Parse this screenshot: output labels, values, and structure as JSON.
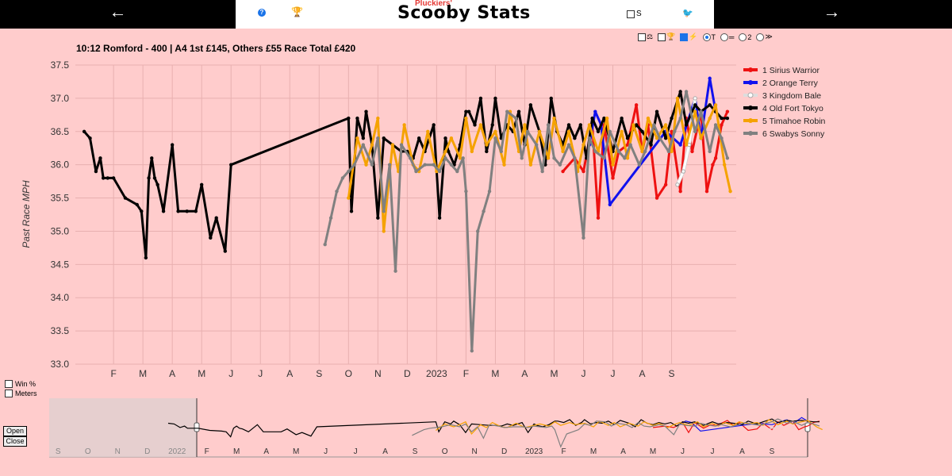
{
  "header": {
    "back_arrow": "←",
    "forward_arrow": "→",
    "brand_small": "Pluckiers'",
    "brand": "Scooby Stats",
    "s_label": "S",
    "help_icon": "help-icon",
    "trophy_icon": "trophy-icon",
    "bird_icon": "bird-icon"
  },
  "race": {
    "title": "10:12 Romford - 400 | A4 1st £145, Others £55 Race Total £420"
  },
  "options": {
    "t_label": "T",
    "two_label": "2",
    "chevron": "≫"
  },
  "side": {
    "win_pct": "Win %",
    "meters": "Meters",
    "open": "Open",
    "close": "Close"
  },
  "chart_data": {
    "type": "line",
    "title": "10:12 Romford - 400 | A4 1st £145, Others £55 Race Total £420",
    "ylabel": "Past Race MPH",
    "xlabel": "",
    "ylim": [
      33.0,
      37.5
    ],
    "yticks": [
      "33.0",
      "33.5",
      "34.0",
      "34.5",
      "35.0",
      "35.5",
      "36.0",
      "36.5",
      "37.0",
      "37.5"
    ],
    "x_tick_labels": [
      "F",
      "M",
      "A",
      "M",
      "J",
      "J",
      "A",
      "S",
      "O",
      "N",
      "D",
      "2023",
      "F",
      "M",
      "A",
      "M",
      "J",
      "J",
      "A",
      "S"
    ],
    "x_unit": "months since 2022-01-01",
    "series": [
      {
        "name": "1 Sirius Warrior",
        "color": "#ee1111",
        "x": [
          16.3,
          16.7,
          17.0,
          17.3,
          17.5,
          17.7,
          18.0,
          18.2,
          18.5,
          18.8,
          19.0,
          19.2,
          19.5,
          19.8,
          20.0,
          20.3,
          20.5,
          20.7,
          21.0,
          21.2,
          21.4,
          21.5,
          21.7,
          21.9
        ],
        "y": [
          35.9,
          36.1,
          35.9,
          36.6,
          35.2,
          36.6,
          35.8,
          36.2,
          36.3,
          36.9,
          36.2,
          36.6,
          35.5,
          35.7,
          36.5,
          35.6,
          36.7,
          36.2,
          36.8,
          35.6,
          36.0,
          36.1,
          36.6,
          36.8
        ]
      },
      {
        "name": "2 Orange Terry",
        "color": "#1111ee",
        "x": [
          17.2,
          17.4,
          17.6,
          17.9,
          19.8,
          20.3,
          20.8,
          21.0,
          21.3,
          21.5
        ],
        "y": [
          36.3,
          36.8,
          36.6,
          35.4,
          36.5,
          36.3,
          37.0,
          36.4,
          37.3,
          36.8
        ]
      },
      {
        "name": "3 Kingdom Bale",
        "color": "#ffffff",
        "x": [
          20.2,
          20.4,
          20.6,
          20.8
        ],
        "y": [
          35.7,
          35.9,
          36.3,
          37.0
        ]
      },
      {
        "name": "4 Old Fort Tokyo",
        "color": "#000000",
        "x": [
          0,
          0.2,
          0.4,
          0.55,
          0.65,
          0.8,
          1.0,
          1.4,
          1.8,
          1.95,
          2.1,
          2.2,
          2.3,
          2.4,
          2.5,
          2.7,
          3.0,
          3.2,
          3.5,
          3.8,
          4.0,
          4.3,
          4.5,
          4.8,
          5.0,
          9.0,
          9.1,
          9.3,
          9.5,
          9.6,
          9.8,
          10.0,
          10.2,
          10.5,
          10.8,
          11.0,
          11.2,
          11.4,
          11.6,
          11.9,
          12.1,
          12.3,
          12.4,
          12.6,
          12.8,
          13.0,
          13.1,
          13.3,
          13.5,
          13.7,
          13.9,
          14.0,
          14.2,
          14.4,
          14.6,
          14.8,
          15.0,
          15.2,
          15.5,
          15.7,
          15.9,
          16.1,
          16.3,
          16.5,
          16.7,
          16.9,
          17.1,
          17.3,
          17.5,
          17.7,
          18.0,
          18.3,
          18.5,
          18.8,
          19.0,
          19.3,
          19.5,
          19.8,
          20.0,
          20.3,
          20.5,
          20.8,
          21.0,
          21.3,
          21.5,
          21.7,
          21.9
        ],
        "y": [
          36.5,
          36.4,
          35.9,
          36.1,
          35.8,
          35.8,
          35.8,
          35.5,
          35.4,
          35.3,
          34.6,
          35.8,
          36.1,
          35.8,
          35.7,
          35.3,
          36.3,
          35.3,
          35.3,
          35.3,
          35.7,
          34.9,
          35.2,
          34.7,
          36.0,
          36.7,
          35.3,
          36.7,
          36.4,
          36.8,
          36.3,
          35.2,
          36.4,
          36.3,
          36.2,
          36.2,
          36.1,
          36.4,
          36.2,
          36.6,
          35.2,
          36.4,
          36.2,
          36.0,
          36.3,
          36.8,
          36.8,
          36.6,
          37.0,
          36.2,
          36.6,
          37.0,
          36.4,
          36.6,
          36.5,
          36.8,
          36.3,
          36.9,
          36.5,
          36.0,
          37.0,
          36.5,
          36.3,
          36.6,
          36.4,
          36.6,
          36.1,
          36.7,
          36.5,
          36.7,
          36.2,
          36.7,
          36.4,
          36.6,
          36.5,
          36.3,
          36.8,
          36.4,
          36.7,
          37.1,
          36.6,
          36.9,
          36.8,
          36.9,
          36.8,
          36.7,
          36.7
        ]
      },
      {
        "name": "5 Timahoe Robin",
        "color": "#f5a200",
        "x": [
          9.0,
          9.3,
          9.6,
          9.8,
          10.0,
          10.2,
          10.5,
          10.7,
          10.9,
          11.2,
          11.4,
          11.7,
          12.0,
          12.3,
          12.5,
          12.8,
          13.0,
          13.2,
          13.5,
          13.7,
          14.0,
          14.3,
          14.5,
          14.8,
          15.0,
          15.2,
          15.5,
          15.8,
          16.0,
          16.3,
          16.5,
          16.8,
          17.0,
          17.2,
          17.5,
          17.8,
          18.0,
          18.3,
          18.5,
          18.7,
          19.0,
          19.2,
          19.5,
          19.8,
          20.0,
          20.2,
          20.5,
          20.8,
          21.0,
          21.3,
          21.5,
          21.8,
          22.0
        ],
        "y": [
          35.5,
          36.4,
          36.0,
          36.3,
          36.7,
          35.0,
          36.3,
          35.9,
          36.6,
          36.0,
          35.9,
          36.5,
          35.9,
          36.2,
          36.4,
          36.1,
          36.7,
          36.2,
          36.6,
          36.3,
          36.5,
          36.0,
          36.8,
          36.2,
          36.6,
          36.0,
          36.5,
          36.1,
          36.7,
          36.2,
          36.5,
          35.9,
          36.3,
          36.6,
          36.2,
          36.7,
          36.0,
          36.5,
          36.1,
          36.6,
          36.2,
          36.7,
          36.4,
          36.6,
          36.2,
          37.0,
          36.3,
          36.8,
          36.4,
          36.7,
          36.9,
          36.0,
          35.6
        ]
      },
      {
        "name": "6 Swabys Sonny",
        "color": "#808080",
        "x": [
          8.2,
          8.4,
          8.6,
          8.8,
          9.0,
          9.2,
          9.5,
          9.8,
          10.0,
          10.2,
          10.4,
          10.6,
          10.8,
          11.1,
          11.3,
          11.6,
          11.9,
          12.1,
          12.3,
          12.5,
          12.7,
          12.9,
          13.0,
          13.2,
          13.4,
          13.6,
          13.8,
          14.0,
          14.2,
          14.4,
          14.7,
          14.9,
          15.1,
          15.4,
          15.6,
          15.8,
          16.0,
          16.2,
          16.5,
          16.7,
          17.0,
          17.2,
          17.4,
          17.7,
          17.9,
          18.2,
          18.4,
          18.6,
          18.9,
          19.1,
          19.4,
          19.6,
          19.9,
          20.1,
          20.3,
          20.5,
          20.8,
          21.0,
          21.3,
          21.5,
          21.7,
          21.9
        ],
        "y": [
          34.8,
          35.2,
          35.6,
          35.8,
          35.9,
          36.0,
          36.3,
          36.0,
          36.4,
          35.3,
          36.0,
          34.4,
          36.3,
          36.1,
          35.9,
          36.0,
          36.0,
          35.9,
          36.1,
          36.0,
          35.9,
          36.1,
          35.6,
          33.2,
          35.0,
          35.3,
          35.6,
          36.4,
          36.2,
          36.8,
          36.7,
          36.1,
          36.5,
          36.3,
          35.9,
          36.6,
          36.1,
          36.0,
          36.3,
          36.1,
          34.9,
          36.4,
          36.2,
          36.1,
          36.5,
          36.2,
          36.1,
          36.3,
          36.0,
          36.2,
          36.6,
          36.4,
          36.2,
          36.5,
          36.7,
          37.1,
          36.5,
          36.8,
          36.2,
          36.6,
          36.4,
          36.1
        ]
      }
    ]
  }
}
